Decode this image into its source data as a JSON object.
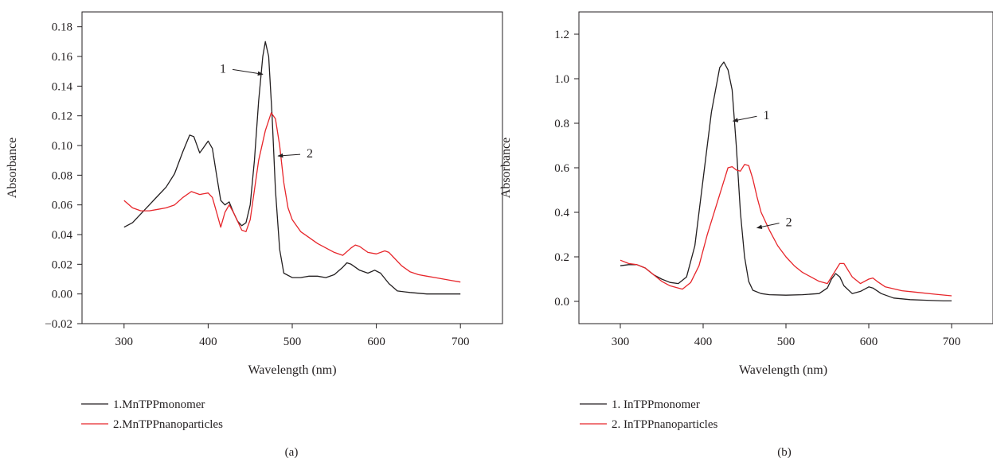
{
  "chart_data": [
    {
      "type": "line",
      "panel_label": "(a)",
      "xlabel": "Wavelength (nm)",
      "ylabel": "Absorbance",
      "xlim": [
        250,
        750
      ],
      "ylim": [
        -0.02,
        0.19
      ],
      "xticks": [
        300,
        400,
        500,
        600,
        700
      ],
      "yticks": [
        -0.02,
        0.0,
        0.02,
        0.04,
        0.06,
        0.08,
        0.1,
        0.12,
        0.14,
        0.16,
        0.18
      ],
      "ytick_labels": [
        "−0.02",
        "0.00",
        "0.02",
        "0.04",
        "0.06",
        "0.08",
        "0.10",
        "0.12",
        "0.14",
        "0.16",
        "0.18"
      ],
      "grid": false,
      "legend_position": "below",
      "annotations": [
        {
          "text": "1",
          "series": 0,
          "x": 465,
          "y": 0.148
        },
        {
          "text": "2",
          "series": 1,
          "x": 483,
          "y": 0.093
        }
      ],
      "series": [
        {
          "name": "1.MnTPPmonomer",
          "color": "#231f20",
          "points": [
            [
              300,
              0.045
            ],
            [
              310,
              0.048
            ],
            [
              320,
              0.054
            ],
            [
              330,
              0.06
            ],
            [
              340,
              0.066
            ],
            [
              350,
              0.072
            ],
            [
              360,
              0.081
            ],
            [
              370,
              0.096
            ],
            [
              378,
              0.107
            ],
            [
              383,
              0.106
            ],
            [
              390,
              0.095
            ],
            [
              395,
              0.099
            ],
            [
              400,
              0.103
            ],
            [
              405,
              0.098
            ],
            [
              410,
              0.08
            ],
            [
              415,
              0.063
            ],
            [
              420,
              0.06
            ],
            [
              425,
              0.062
            ],
            [
              430,
              0.055
            ],
            [
              435,
              0.049
            ],
            [
              440,
              0.046
            ],
            [
              445,
              0.048
            ],
            [
              450,
              0.06
            ],
            [
              455,
              0.09
            ],
            [
              460,
              0.13
            ],
            [
              465,
              0.16
            ],
            [
              468,
              0.17
            ],
            [
              472,
              0.16
            ],
            [
              476,
              0.12
            ],
            [
              480,
              0.07
            ],
            [
              485,
              0.03
            ],
            [
              490,
              0.014
            ],
            [
              500,
              0.011
            ],
            [
              510,
              0.011
            ],
            [
              520,
              0.012
            ],
            [
              530,
              0.012
            ],
            [
              540,
              0.011
            ],
            [
              550,
              0.013
            ],
            [
              560,
              0.018
            ],
            [
              565,
              0.021
            ],
            [
              570,
              0.02
            ],
            [
              580,
              0.016
            ],
            [
              590,
              0.014
            ],
            [
              598,
              0.016
            ],
            [
              605,
              0.014
            ],
            [
              615,
              0.007
            ],
            [
              625,
              0.002
            ],
            [
              640,
              0.001
            ],
            [
              660,
              0.0
            ],
            [
              680,
              0.0
            ],
            [
              700,
              0.0
            ]
          ]
        },
        {
          "name": "2.MnTPPnanoparticles",
          "color": "#e7262b",
          "points": [
            [
              300,
              0.063
            ],
            [
              310,
              0.058
            ],
            [
              320,
              0.056
            ],
            [
              330,
              0.056
            ],
            [
              340,
              0.057
            ],
            [
              350,
              0.058
            ],
            [
              360,
              0.06
            ],
            [
              370,
              0.065
            ],
            [
              380,
              0.069
            ],
            [
              390,
              0.067
            ],
            [
              400,
              0.068
            ],
            [
              405,
              0.065
            ],
            [
              410,
              0.055
            ],
            [
              415,
              0.045
            ],
            [
              420,
              0.055
            ],
            [
              425,
              0.06
            ],
            [
              430,
              0.055
            ],
            [
              440,
              0.043
            ],
            [
              445,
              0.042
            ],
            [
              450,
              0.05
            ],
            [
              455,
              0.07
            ],
            [
              460,
              0.09
            ],
            [
              468,
              0.11
            ],
            [
              475,
              0.122
            ],
            [
              480,
              0.118
            ],
            [
              485,
              0.1
            ],
            [
              490,
              0.075
            ],
            [
              495,
              0.058
            ],
            [
              500,
              0.05
            ],
            [
              510,
              0.042
            ],
            [
              520,
              0.038
            ],
            [
              530,
              0.034
            ],
            [
              540,
              0.031
            ],
            [
              550,
              0.028
            ],
            [
              560,
              0.026
            ],
            [
              570,
              0.031
            ],
            [
              575,
              0.033
            ],
            [
              580,
              0.032
            ],
            [
              590,
              0.028
            ],
            [
              600,
              0.027
            ],
            [
              610,
              0.029
            ],
            [
              615,
              0.028
            ],
            [
              620,
              0.025
            ],
            [
              630,
              0.019
            ],
            [
              640,
              0.015
            ],
            [
              650,
              0.013
            ],
            [
              660,
              0.012
            ],
            [
              670,
              0.011
            ],
            [
              680,
              0.01
            ],
            [
              690,
              0.009
            ],
            [
              700,
              0.008
            ]
          ]
        }
      ]
    },
    {
      "type": "line",
      "panel_label": "(b)",
      "xlabel": "Wavelength (nm)",
      "ylabel": "Absorbance",
      "xlim": [
        250,
        750
      ],
      "ylim": [
        -0.1,
        1.3
      ],
      "xticks": [
        300,
        400,
        500,
        600,
        700
      ],
      "yticks": [
        0.0,
        0.2,
        0.4,
        0.6,
        0.8,
        1.0,
        1.2
      ],
      "ytick_labels": [
        "0.0",
        "0.2",
        "0.4",
        "0.6",
        "0.8",
        "1.0",
        "1.2"
      ],
      "grid": false,
      "legend_position": "below",
      "annotations": [
        {
          "text": "1",
          "series": 0,
          "x": 436,
          "y": 0.81
        },
        {
          "text": "2",
          "series": 1,
          "x": 465,
          "y": 0.33
        }
      ],
      "series": [
        {
          "name": "1. InTPPmonomer",
          "color": "#231f20",
          "points": [
            [
              300,
              0.16
            ],
            [
              310,
              0.165
            ],
            [
              320,
              0.165
            ],
            [
              330,
              0.15
            ],
            [
              340,
              0.12
            ],
            [
              350,
              0.1
            ],
            [
              360,
              0.085
            ],
            [
              370,
              0.08
            ],
            [
              380,
              0.11
            ],
            [
              390,
              0.25
            ],
            [
              400,
              0.55
            ],
            [
              410,
              0.85
            ],
            [
              420,
              1.05
            ],
            [
              425,
              1.075
            ],
            [
              430,
              1.04
            ],
            [
              435,
              0.95
            ],
            [
              440,
              0.7
            ],
            [
              445,
              0.4
            ],
            [
              450,
              0.2
            ],
            [
              455,
              0.09
            ],
            [
              460,
              0.05
            ],
            [
              470,
              0.035
            ],
            [
              480,
              0.03
            ],
            [
              500,
              0.028
            ],
            [
              520,
              0.03
            ],
            [
              540,
              0.035
            ],
            [
              550,
              0.06
            ],
            [
              555,
              0.1
            ],
            [
              560,
              0.125
            ],
            [
              565,
              0.11
            ],
            [
              570,
              0.07
            ],
            [
              580,
              0.035
            ],
            [
              590,
              0.045
            ],
            [
              600,
              0.065
            ],
            [
              605,
              0.06
            ],
            [
              615,
              0.035
            ],
            [
              630,
              0.015
            ],
            [
              650,
              0.008
            ],
            [
              670,
              0.005
            ],
            [
              690,
              0.002
            ],
            [
              700,
              0.002
            ]
          ]
        },
        {
          "name": "2. InTPPnanoparticles",
          "color": "#e7262b",
          "points": [
            [
              300,
              0.185
            ],
            [
              310,
              0.17
            ],
            [
              320,
              0.165
            ],
            [
              330,
              0.15
            ],
            [
              340,
              0.12
            ],
            [
              350,
              0.09
            ],
            [
              360,
              0.07
            ],
            [
              370,
              0.06
            ],
            [
              375,
              0.055
            ],
            [
              385,
              0.085
            ],
            [
              395,
              0.16
            ],
            [
              405,
              0.3
            ],
            [
              415,
              0.42
            ],
            [
              425,
              0.54
            ],
            [
              430,
              0.6
            ],
            [
              435,
              0.605
            ],
            [
              440,
              0.59
            ],
            [
              445,
              0.585
            ],
            [
              450,
              0.615
            ],
            [
              455,
              0.61
            ],
            [
              460,
              0.55
            ],
            [
              465,
              0.47
            ],
            [
              470,
              0.4
            ],
            [
              480,
              0.32
            ],
            [
              490,
              0.25
            ],
            [
              500,
              0.2
            ],
            [
              510,
              0.16
            ],
            [
              520,
              0.13
            ],
            [
              530,
              0.11
            ],
            [
              540,
              0.09
            ],
            [
              550,
              0.08
            ],
            [
              560,
              0.14
            ],
            [
              565,
              0.17
            ],
            [
              570,
              0.17
            ],
            [
              580,
              0.11
            ],
            [
              590,
              0.08
            ],
            [
              600,
              0.1
            ],
            [
              605,
              0.105
            ],
            [
              610,
              0.09
            ],
            [
              620,
              0.065
            ],
            [
              640,
              0.048
            ],
            [
              660,
              0.04
            ],
            [
              680,
              0.032
            ],
            [
              700,
              0.025
            ]
          ]
        }
      ]
    }
  ]
}
